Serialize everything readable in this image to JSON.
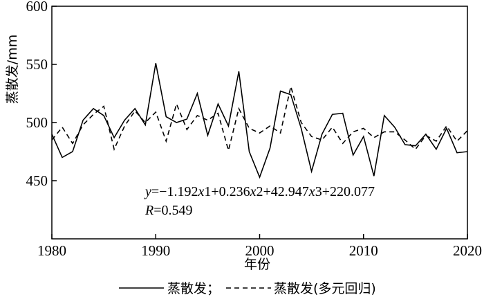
{
  "chart_data": {
    "type": "line",
    "title": "",
    "xlabel": "年份",
    "ylabel": "蒸散发/mm",
    "xlim": [
      1980,
      2020
    ],
    "ylim": [
      400,
      600
    ],
    "x_ticks": [
      1980,
      1990,
      2000,
      2010,
      2020
    ],
    "y_ticks": [
      450,
      500,
      550,
      600
    ],
    "x": [
      1980,
      1981,
      1982,
      1983,
      1984,
      1985,
      1986,
      1987,
      1988,
      1989,
      1990,
      1991,
      1992,
      1993,
      1994,
      1995,
      1996,
      1997,
      1998,
      1999,
      2000,
      2001,
      2002,
      2003,
      2004,
      2005,
      2006,
      2007,
      2008,
      2009,
      2010,
      2011,
      2012,
      2013,
      2014,
      2015,
      2016,
      2017,
      2018,
      2019,
      2020
    ],
    "series": [
      {
        "name": "蒸散发",
        "style": "solid",
        "values": [
          490,
          470,
          475,
          502,
          512,
          506,
          487,
          502,
          512,
          498,
          551,
          505,
          500,
          503,
          525,
          489,
          516,
          497,
          544,
          475,
          453,
          478,
          527,
          524,
          495,
          458,
          490,
          507,
          508,
          472,
          488,
          454,
          506,
          496,
          481,
          480,
          490,
          477,
          495,
          474,
          475
        ]
      },
      {
        "name": "蒸散发(多元回归)",
        "style": "dashed",
        "values": [
          485,
          496,
          482,
          498,
          507,
          514,
          477,
          497,
          510,
          500,
          509,
          484,
          516,
          494,
          506,
          502,
          508,
          476,
          512,
          495,
          491,
          497,
          491,
          531,
          500,
          488,
          485,
          496,
          482,
          492,
          495,
          487,
          492,
          492,
          485,
          477,
          489,
          484,
          497,
          484,
          493
        ]
      }
    ],
    "annotations": [
      "y=−1.192x1+0.236x2+42.947x3+220.077",
      "R=0.549"
    ],
    "legend_position": "bottom",
    "grid": false
  },
  "legend": {
    "solid_label": "蒸散发；",
    "dashed_label": "蒸散发(多元回归)"
  }
}
